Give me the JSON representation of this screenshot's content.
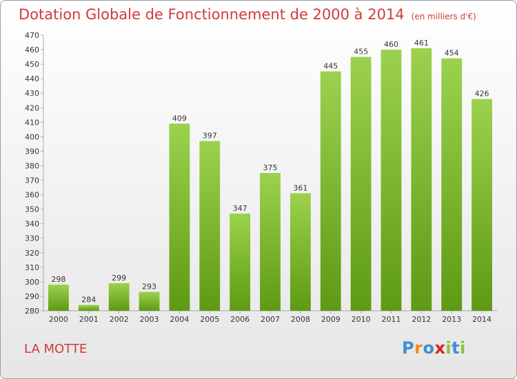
{
  "title": "Dotation Globale de Fonctionnement de 2000 à 2014",
  "unit_label": "(en milliers d'€)",
  "commune": "LA MOTTE",
  "logo": {
    "letters": [
      "P",
      "r",
      "o",
      "x",
      "i",
      "t",
      "i"
    ],
    "colors": [
      "#3a8fd8",
      "#f08a1c",
      "#3a8fd8",
      "#d8231d",
      "#8cbf3c",
      "#3a8fd8",
      "#8cbf3c"
    ]
  },
  "colors": {
    "title": "#d23a3a",
    "bar_light": "#9cd14e",
    "bar_dark": "#5e9a14"
  },
  "chart_data": {
    "type": "bar",
    "title": "Dotation Globale de Fonctionnement de 2000 à 2014",
    "subtitle": "(en milliers d'€)",
    "xlabel": "",
    "ylabel": "",
    "categories": [
      "2000",
      "2001",
      "2002",
      "2003",
      "2004",
      "2005",
      "2006",
      "2007",
      "2008",
      "2009",
      "2010",
      "2011",
      "2012",
      "2013",
      "2014"
    ],
    "values": [
      298,
      284,
      299,
      293,
      409,
      397,
      347,
      375,
      361,
      445,
      455,
      460,
      461,
      454,
      426
    ],
    "ylim": [
      280,
      470
    ],
    "ytick_step": 10,
    "grid": false,
    "legend": "none"
  }
}
